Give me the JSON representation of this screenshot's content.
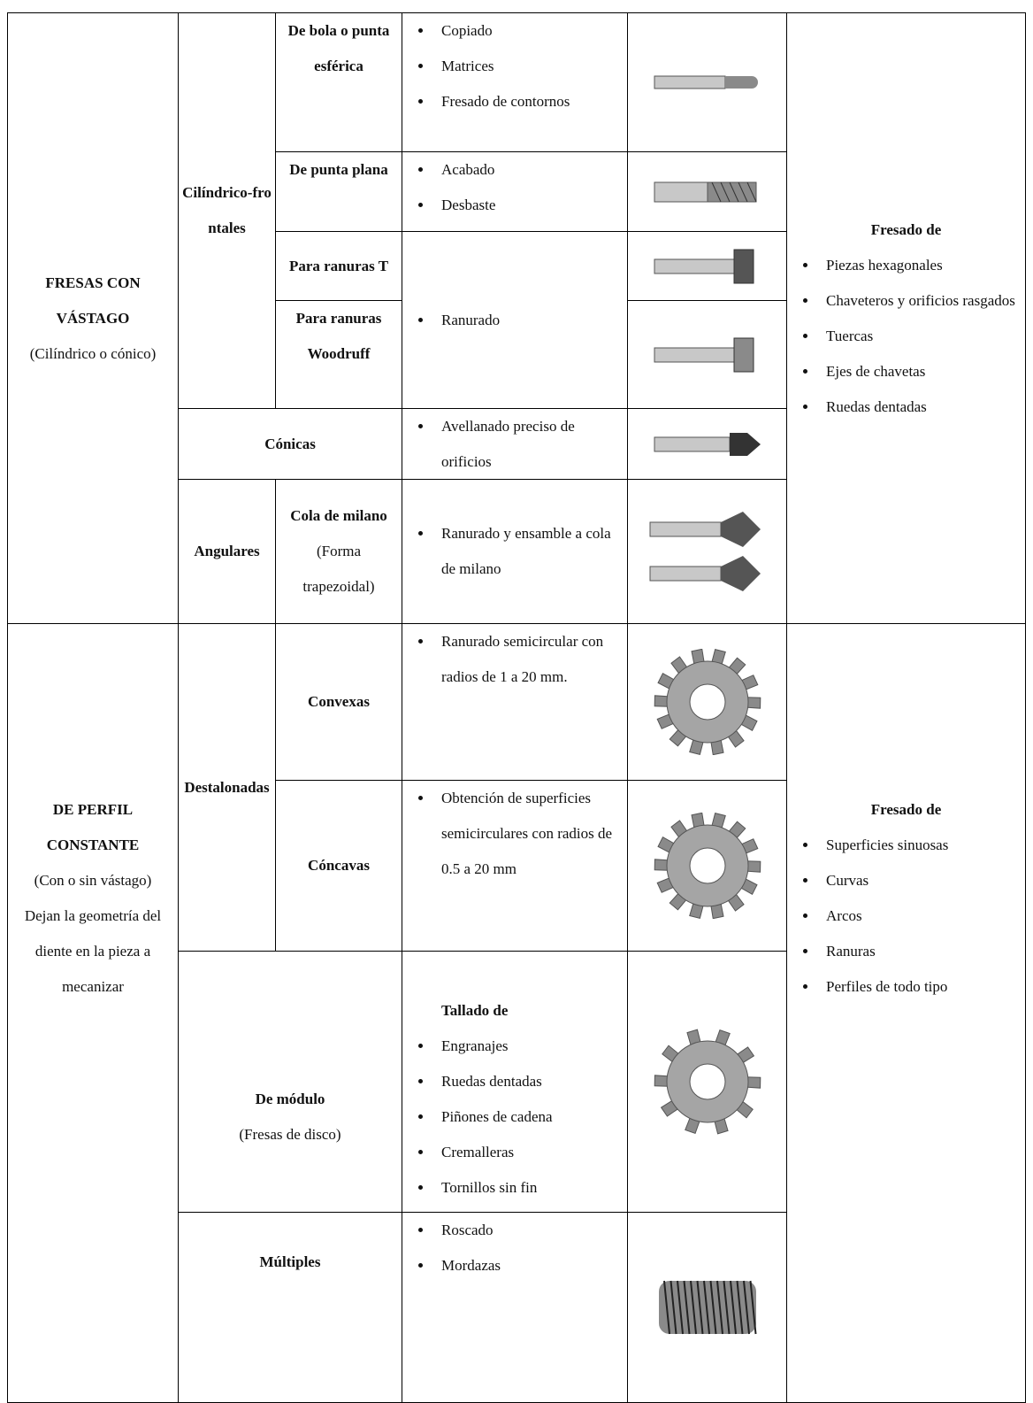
{
  "groups": [
    {
      "title": "FRESAS CON VÁSTAGO",
      "notes": [
        "(Cilíndrico o cónico)"
      ],
      "uses_heading": "Fresado de",
      "uses": [
        "Piezas hexagonales",
        "Chaveteros y orificios rasgados",
        "Tuercas",
        "Ejes de chavetas",
        "Ruedas dentadas"
      ]
    },
    {
      "title": "DE PERFIL CONSTANTE",
      "notes": [
        "(Con o sin vástago)",
        "Dejan la geometría del diente en la pieza a mecanizar"
      ],
      "uses_heading": "Fresado de",
      "uses": [
        "Superficies sinuosas",
        "Curvas",
        "Arcos",
        "Ranuras",
        "Perfiles de todo tipo"
      ]
    }
  ],
  "families": [
    {
      "name": "Cilíndrico-frontales"
    },
    {
      "name": "Cónicas",
      "applications": [
        "Avellanado preciso de orificios"
      ]
    },
    {
      "name": "Angulares"
    },
    {
      "name": "Destalonadas"
    },
    {
      "name": "De módulo",
      "note": "(Fresas de disco)",
      "applications_heading": "Tallado de",
      "applications": [
        "Engranajes",
        "Ruedas dentadas",
        "Piñones de cadena",
        "Cremalleras",
        "Tornillos sin fin"
      ]
    },
    {
      "name": "Múltiples",
      "applications": [
        "Roscado",
        "Mordazas"
      ]
    }
  ],
  "subtypes": [
    {
      "name": "De bola o punta esférica",
      "applications": [
        "Copiado",
        "Matrices",
        "Fresado de contornos"
      ]
    },
    {
      "name": "De punta plana",
      "applications": [
        "Acabado",
        "Desbaste"
      ]
    },
    {
      "name": "Para ranuras T"
    },
    {
      "name": "Para ranuras Woodruff"
    },
    {
      "name": "Cola de milano",
      "note": "(Forma trapezoidal)",
      "applications": [
        "Ranurado y ensamble a cola de milano"
      ]
    },
    {
      "name": "Convexas",
      "applications": [
        "Ranurado semicircular con radios de 1 a 20 mm."
      ]
    },
    {
      "name": "Cóncavas",
      "applications": [
        "Obtención de superficies semicirculares con radios de 0.5 a 20 mm"
      ]
    }
  ],
  "slot_applications": [
    "Ranurado"
  ]
}
